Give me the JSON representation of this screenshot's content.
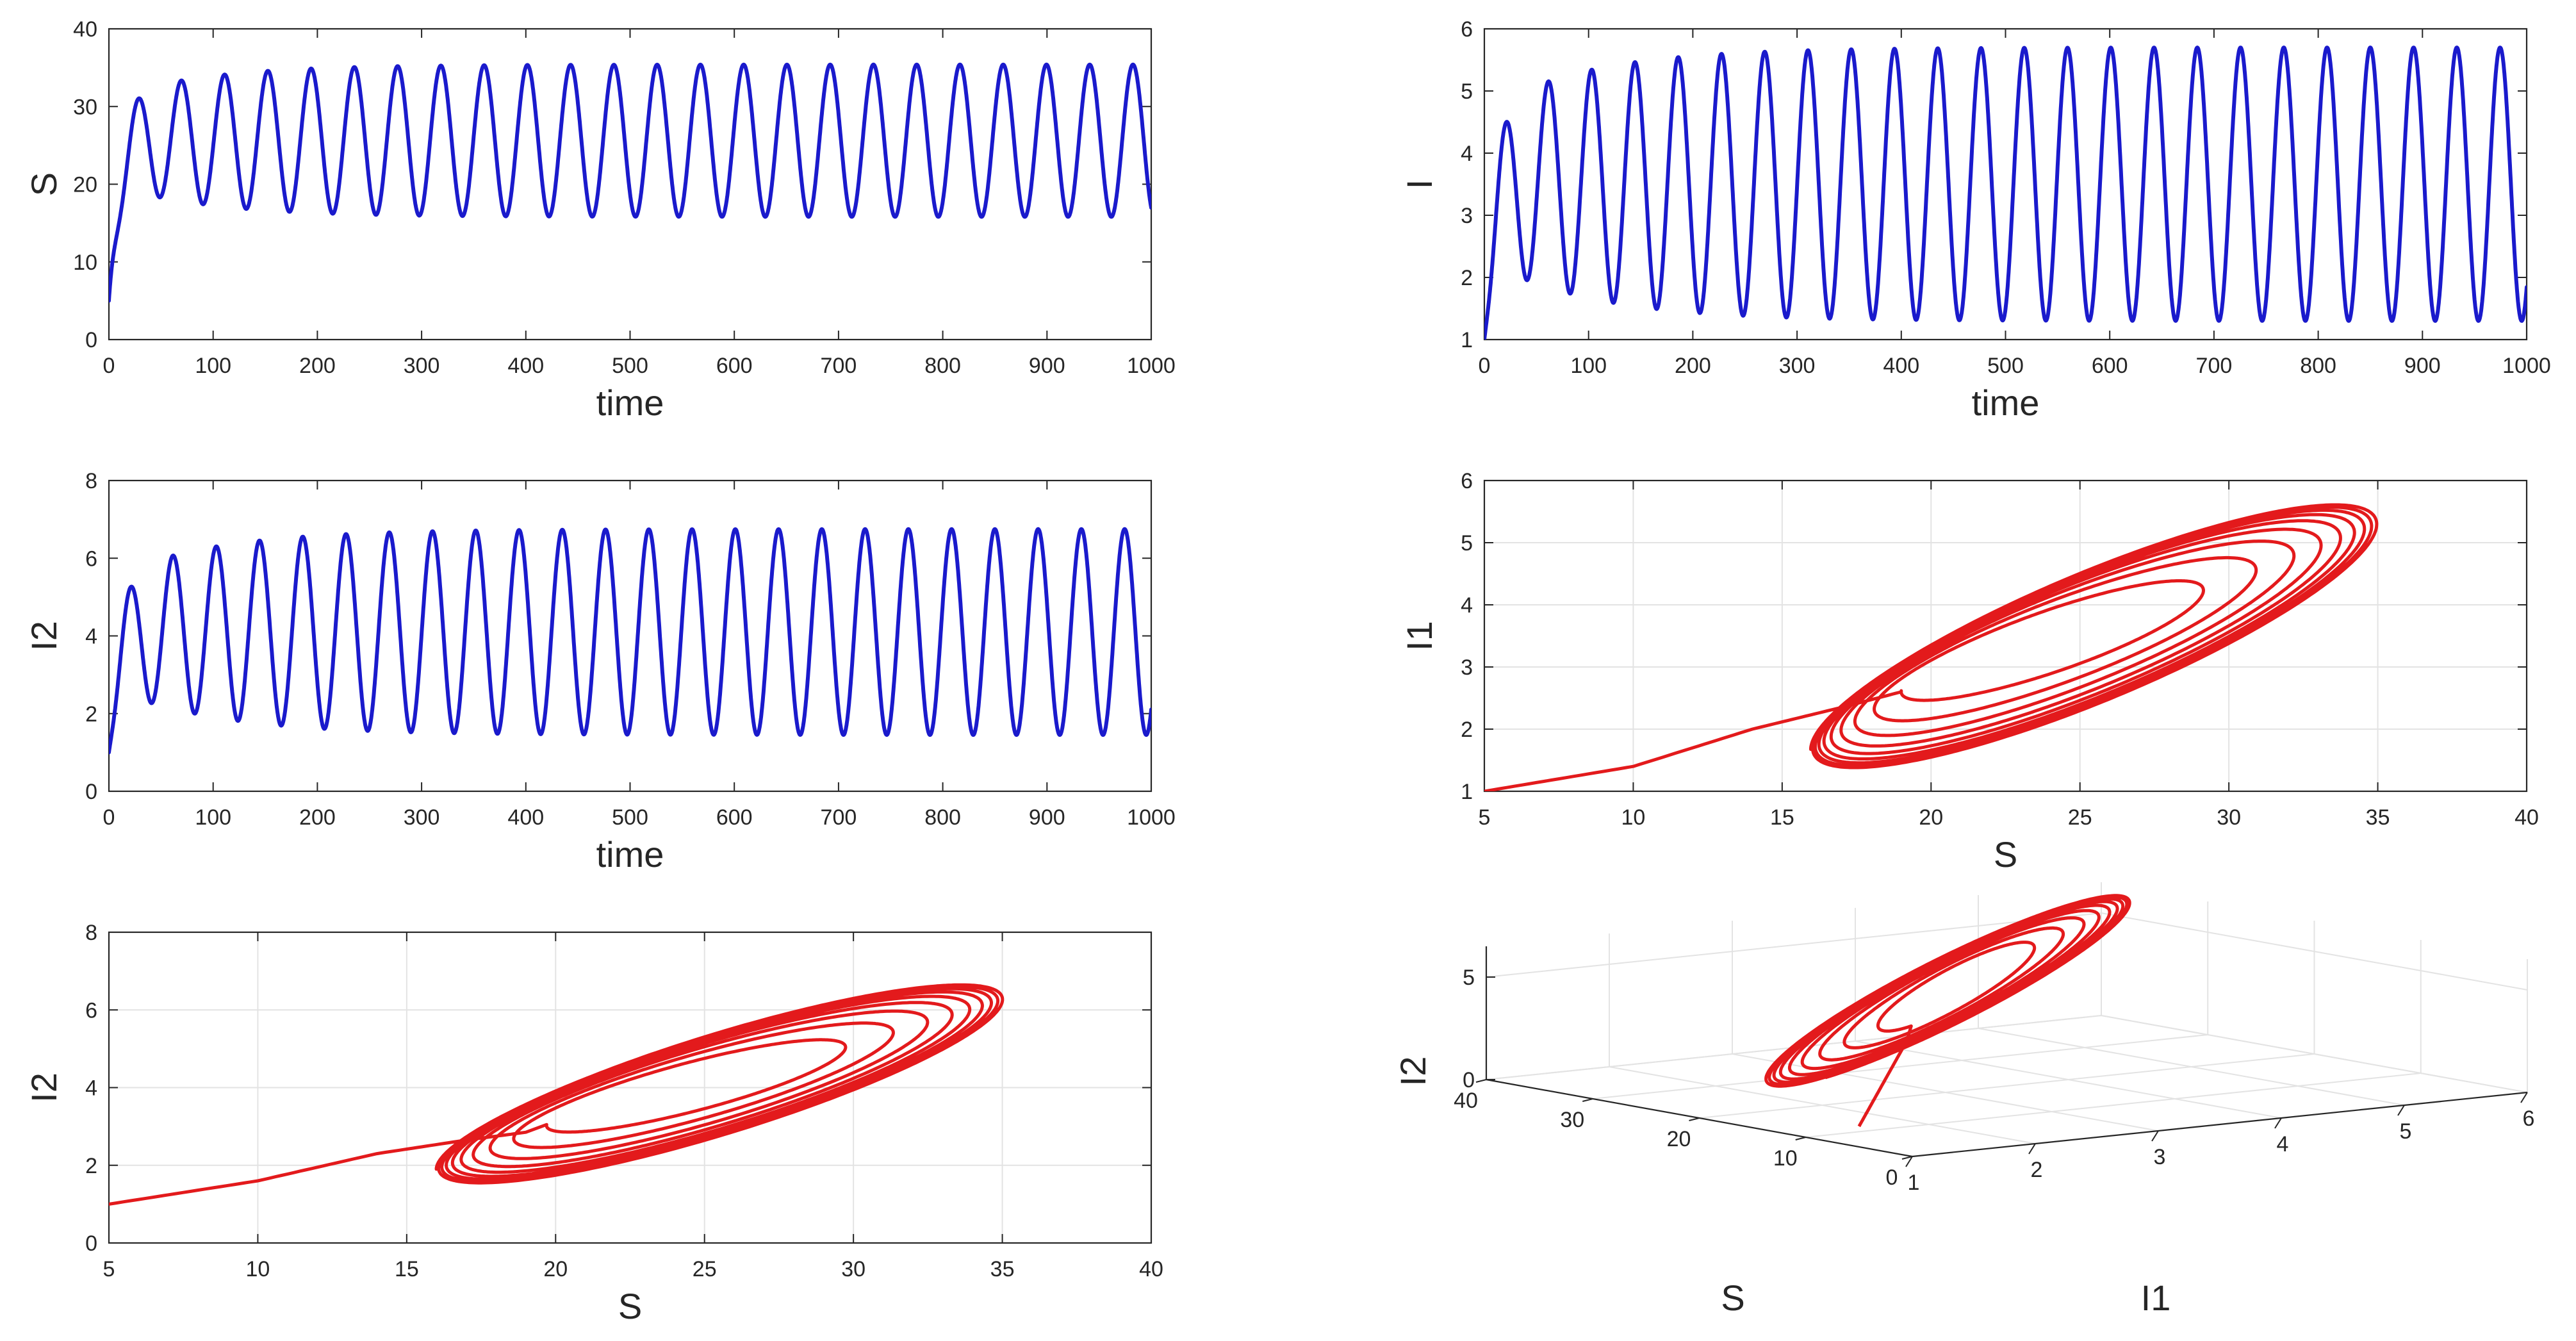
{
  "colors": {
    "series_blue": "#1a1acc",
    "series_red": "#e31a1c",
    "grid": "#e3e3e3",
    "axis": "#262626"
  },
  "chart_data": [
    {
      "id": "s_time",
      "type": "line",
      "xlabel": "time",
      "ylabel": "S",
      "xlim": [
        0,
        1000
      ],
      "ylim": [
        0,
        40
      ],
      "xticks": [
        0,
        100,
        200,
        300,
        400,
        500,
        600,
        700,
        800,
        900,
        1000
      ],
      "yticks": [
        0,
        10,
        20,
        30,
        40
      ],
      "grid": false,
      "color": "#1a1acc",
      "model": {
        "x0": 5,
        "mean": 25.6,
        "amp_final": 9.8,
        "amp_first": 5.4,
        "growth_time": 90,
        "first_peak_time": 28,
        "period": 41.5,
        "t_end": 1000
      },
      "series": [
        {
          "peaks": [
            [
              28,
              28.4
            ],
            [
              70,
              30.6
            ],
            [
              112,
              32.3
            ],
            [
              153,
              33.6
            ],
            [
              195,
              34.5
            ],
            [
              236,
              35.0
            ],
            [
              278,
              35.3
            ],
            [
              320,
              35.4
            ],
            [
              361,
              35.4
            ],
            [
              403,
              35.4
            ]
          ],
          "troughs": [
            [
              48,
              18.0
            ],
            [
              90,
              17.0
            ],
            [
              132,
              16.4
            ],
            [
              174,
              16.0
            ],
            [
              215,
              15.8
            ],
            [
              257,
              15.8
            ]
          ]
        }
      ]
    },
    {
      "id": "i_time",
      "type": "line",
      "xlabel": "time",
      "ylabel": "I",
      "xlim": [
        0,
        1000
      ],
      "ylim": [
        1,
        6
      ],
      "xticks": [
        0,
        100,
        200,
        300,
        400,
        500,
        600,
        700,
        800,
        900,
        1000
      ],
      "yticks": [
        1,
        2,
        3,
        4,
        5,
        6
      ],
      "grid": false,
      "color": "#1a1acc",
      "model": {
        "x0": 1.0,
        "mean": 3.5,
        "amp_final": 2.2,
        "amp_first": 1.2,
        "growth_time": 100,
        "first_peak_time": 20,
        "period": 41.5,
        "t_end": 1000
      },
      "series": [
        {
          "peaks": [
            [
              20,
              4.1
            ],
            [
              62,
              4.9
            ],
            [
              103,
              5.3
            ],
            [
              145,
              5.5
            ],
            [
              186,
              5.6
            ],
            [
              228,
              5.65
            ],
            [
              270,
              5.7
            ],
            [
              311,
              5.7
            ]
          ],
          "troughs": [
            [
              40,
              1.95
            ],
            [
              82,
              1.7
            ],
            [
              124,
              1.55
            ],
            [
              166,
              1.45
            ],
            [
              207,
              1.35
            ],
            [
              249,
              1.3
            ]
          ]
        }
      ]
    },
    {
      "id": "i2_time",
      "type": "line",
      "xlabel": "time",
      "ylabel": "I2",
      "xlim": [
        0,
        1000
      ],
      "ylim": [
        0,
        8
      ],
      "xticks": [
        0,
        100,
        200,
        300,
        400,
        500,
        600,
        700,
        800,
        900,
        1000
      ],
      "yticks": [
        0,
        2,
        4,
        6,
        8
      ],
      "grid": false,
      "color": "#1a1acc",
      "model": {
        "x0": 1.0,
        "mean": 4.1,
        "amp_final": 2.65,
        "amp_first": 1.4,
        "growth_time": 100,
        "first_peak_time": 20,
        "period": 41.5,
        "t_end": 1000
      },
      "series": [
        {
          "peaks": [
            [
              20,
              4.8
            ],
            [
              62,
              5.3
            ],
            [
              103,
              5.8
            ],
            [
              145,
              6.2
            ],
            [
              186,
              6.5
            ],
            [
              228,
              6.65
            ],
            [
              270,
              6.75
            ],
            [
              311,
              6.75
            ]
          ],
          "troughs": [
            [
              40,
              2.3
            ],
            [
              82,
              1.95
            ],
            [
              124,
              1.7
            ],
            [
              166,
              1.55
            ],
            [
              207,
              1.5
            ],
            [
              249,
              1.45
            ]
          ]
        }
      ]
    },
    {
      "id": "i1_vs_s",
      "type": "line",
      "xlabel": "S",
      "ylabel": "I1",
      "xlim": [
        5,
        40
      ],
      "ylim": [
        1,
        6
      ],
      "xticks": [
        5,
        10,
        15,
        20,
        25,
        30,
        35,
        40
      ],
      "yticks": [
        1,
        2,
        3,
        4,
        5,
        6
      ],
      "grid": true,
      "color": "#e31a1c",
      "model": {
        "start": [
          5,
          1.0
        ],
        "approach": [
          [
            10,
            1.4
          ],
          [
            14,
            2.0
          ],
          [
            17,
            2.35
          ],
          [
            19,
            2.6
          ]
        ],
        "center_start": [
          23.5,
          3.3
        ],
        "center_end": [
          25.6,
          3.5
        ],
        "radius_s": [
          4.5,
          9.8
        ],
        "radius_i": [
          0.8,
          2.2
        ],
        "phase_shift": 0.55,
        "loops": 9
      }
    },
    {
      "id": "i2_vs_s",
      "type": "line",
      "xlabel": "S",
      "ylabel": "I2",
      "xlim": [
        5,
        40
      ],
      "ylim": [
        0,
        8
      ],
      "xticks": [
        5,
        10,
        15,
        20,
        25,
        30,
        35,
        40
      ],
      "yticks": [
        0,
        2,
        4,
        6,
        8
      ],
      "grid": true,
      "color": "#e31a1c",
      "model": {
        "start": [
          5,
          1.0
        ],
        "approach": [
          [
            10,
            1.6
          ],
          [
            14,
            2.3
          ],
          [
            17,
            2.65
          ],
          [
            19,
            2.85
          ]
        ],
        "center_start": [
          24.2,
          3.9
        ],
        "center_end": [
          25.6,
          4.1
        ],
        "radius_s": [
          4.5,
          9.8
        ],
        "radius_i": [
          1.0,
          2.65
        ],
        "phase_shift": 0.55,
        "loops": 9
      }
    },
    {
      "id": "i2_s_i1_3d",
      "type": "line",
      "projection": "3d",
      "xlabel": "I1",
      "ylabel": "S",
      "zlabel": "I2",
      "xticks": [
        1,
        2,
        3,
        4,
        5,
        6
      ],
      "yticks": [
        0,
        10,
        20,
        30,
        40
      ],
      "zticks": [
        0,
        5
      ],
      "grid": true,
      "color": "#e31a1c",
      "model": {
        "start": [
          1.0,
          5,
          1.0
        ],
        "center": [
          3.5,
          25.6,
          4.1
        ],
        "radius_i1": [
          0.8,
          2.2
        ],
        "radius_s": [
          4.5,
          9.8
        ],
        "radius_i2": [
          1.0,
          2.65
        ],
        "loops": 9
      }
    }
  ]
}
